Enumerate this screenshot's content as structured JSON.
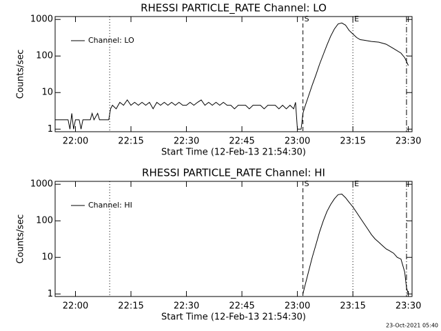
{
  "chart_data": [
    {
      "type": "line",
      "title": "RHESSI PARTICLE_RATE Channel: LO",
      "xlabel": "Start Time (12-Feb-13 21:54:30)",
      "ylabel": "Counts/sec",
      "xlim": [
        "21:54:30",
        "23:31:00"
      ],
      "xticks": [
        "22:00",
        "22:15",
        "22:30",
        "22:45",
        "23:00",
        "23:15",
        "23:30"
      ],
      "ylim": [
        0.85,
        1200
      ],
      "yticks": [
        1,
        10,
        100,
        1000
      ],
      "log_y": true,
      "legend": "upper left",
      "markers": [
        {
          "x": "22:09:15",
          "style": "dotted"
        },
        {
          "x": "23:01:30",
          "style": "dashed",
          "label": "S"
        },
        {
          "x": "23:15:00",
          "style": "dotted",
          "label": "E"
        },
        {
          "x": "23:29:30",
          "style": "dashdot"
        }
      ],
      "series": [
        {
          "name": "Channel: LO",
          "color": "#000000",
          "x": [
            "21:54:30",
            "21:58:00",
            "21:58:30",
            "21:59:00",
            "21:59:30",
            "22:00:00",
            "22:01:00",
            "22:01:30",
            "22:02:00",
            "22:04:00",
            "22:04:30",
            "22:05:00",
            "22:06:00",
            "22:06:30",
            "22:09:00",
            "22:09:30",
            "22:10:00",
            "22:11:00",
            "22:12:00",
            "22:13:00",
            "22:14:00",
            "22:15:00",
            "22:16:00",
            "22:17:00",
            "22:18:00",
            "22:19:00",
            "22:20:00",
            "22:21:00",
            "22:22:00",
            "22:23:00",
            "22:24:00",
            "22:25:00",
            "22:26:00",
            "22:27:00",
            "22:28:00",
            "22:29:00",
            "22:30:00",
            "22:31:00",
            "22:32:00",
            "22:33:00",
            "22:34:00",
            "22:35:00",
            "22:36:00",
            "22:37:00",
            "22:38:00",
            "22:39:00",
            "22:40:00",
            "22:41:00",
            "22:42:00",
            "22:43:00",
            "22:44:00",
            "22:46:00",
            "22:47:00",
            "22:48:00",
            "22:50:00",
            "22:51:00",
            "22:52:00",
            "22:54:00",
            "22:55:00",
            "22:56:00",
            "22:57:00",
            "22:58:00",
            "22:59:00",
            "22:59:30",
            "23:00:00",
            "23:01:00",
            "23:01:30",
            "23:02:00",
            "23:03:00",
            "23:04:00",
            "23:05:00",
            "23:06:00",
            "23:07:00",
            "23:08:00",
            "23:09:00",
            "23:10:00",
            "23:11:00",
            "23:12:00",
            "23:13:00",
            "23:14:00",
            "23:15:00",
            "23:16:00",
            "23:17:00",
            "23:18:00",
            "23:20:00",
            "23:22:00",
            "23:24:00",
            "23:26:00",
            "23:28:00",
            "23:29:00",
            "23:30:00"
          ],
          "values": [
            1.8,
            1.8,
            1.0,
            2.7,
            1.0,
            1.8,
            1.8,
            1.0,
            1.8,
            1.8,
            2.7,
            1.8,
            2.7,
            1.8,
            1.8,
            3.6,
            4.5,
            3.6,
            5.4,
            4.5,
            6.3,
            4.5,
            5.4,
            4.5,
            5.4,
            4.5,
            5.4,
            3.6,
            5.4,
            4.5,
            5.4,
            4.5,
            5.4,
            4.5,
            5.4,
            4.5,
            4.5,
            5.4,
            4.5,
            5.4,
            6.3,
            4.5,
            5.4,
            4.5,
            5.4,
            4.5,
            5.4,
            4.5,
            4.5,
            3.6,
            4.5,
            4.5,
            3.6,
            4.5,
            4.5,
            3.6,
            4.5,
            4.5,
            3.6,
            4.5,
            3.6,
            4.5,
            3.6,
            5.4,
            1.0,
            1.0,
            2.7,
            4,
            8,
            16,
            30,
            60,
            110,
            200,
            350,
            550,
            750,
            800,
            700,
            500,
            400,
            320,
            280,
            270,
            250,
            240,
            210,
            160,
            120,
            90,
            55
          ]
        }
      ]
    },
    {
      "type": "line",
      "title": "RHESSI PARTICLE_RATE Channel: HI",
      "xlabel": "Start Time (12-Feb-13 21:54:30)",
      "ylabel": "Counts/sec",
      "xlim": [
        "21:54:30",
        "23:31:00"
      ],
      "xticks": [
        "22:00",
        "22:15",
        "22:30",
        "22:45",
        "23:00",
        "23:15",
        "23:30"
      ],
      "ylim": [
        0.85,
        1200
      ],
      "yticks": [
        1,
        10,
        100,
        1000
      ],
      "log_y": true,
      "legend": "upper left",
      "markers": [
        {
          "x": "22:09:15",
          "style": "dotted"
        },
        {
          "x": "23:01:30",
          "style": "dashed",
          "label": "S"
        },
        {
          "x": "23:15:00",
          "style": "dotted",
          "label": "E"
        },
        {
          "x": "23:29:30",
          "style": "dashdot"
        }
      ],
      "series": [
        {
          "name": "Channel: HI",
          "color": "#000000",
          "x": [
            "23:01:30",
            "23:02:00",
            "23:03:00",
            "23:04:00",
            "23:05:00",
            "23:06:00",
            "23:07:00",
            "23:08:00",
            "23:09:00",
            "23:10:00",
            "23:11:00",
            "23:12:00",
            "23:13:00",
            "23:14:00",
            "23:15:00",
            "23:16:00",
            "23:17:00",
            "23:18:00",
            "23:19:00",
            "23:20:00",
            "23:21:00",
            "23:22:00",
            "23:23:00",
            "23:24:00",
            "23:25:00",
            "23:26:00",
            "23:27:00",
            "23:28:00",
            "23:29:00",
            "23:29:30",
            "23:30:00"
          ],
          "values": [
            1,
            1.6,
            4,
            10,
            22,
            50,
            100,
            180,
            280,
            400,
            520,
            540,
            430,
            320,
            240,
            170,
            120,
            85,
            60,
            42,
            32,
            26,
            21,
            17,
            15,
            13,
            10,
            9,
            4,
            1.5,
            1
          ]
        }
      ]
    }
  ],
  "footer": "23-Oct-2021 05:40"
}
